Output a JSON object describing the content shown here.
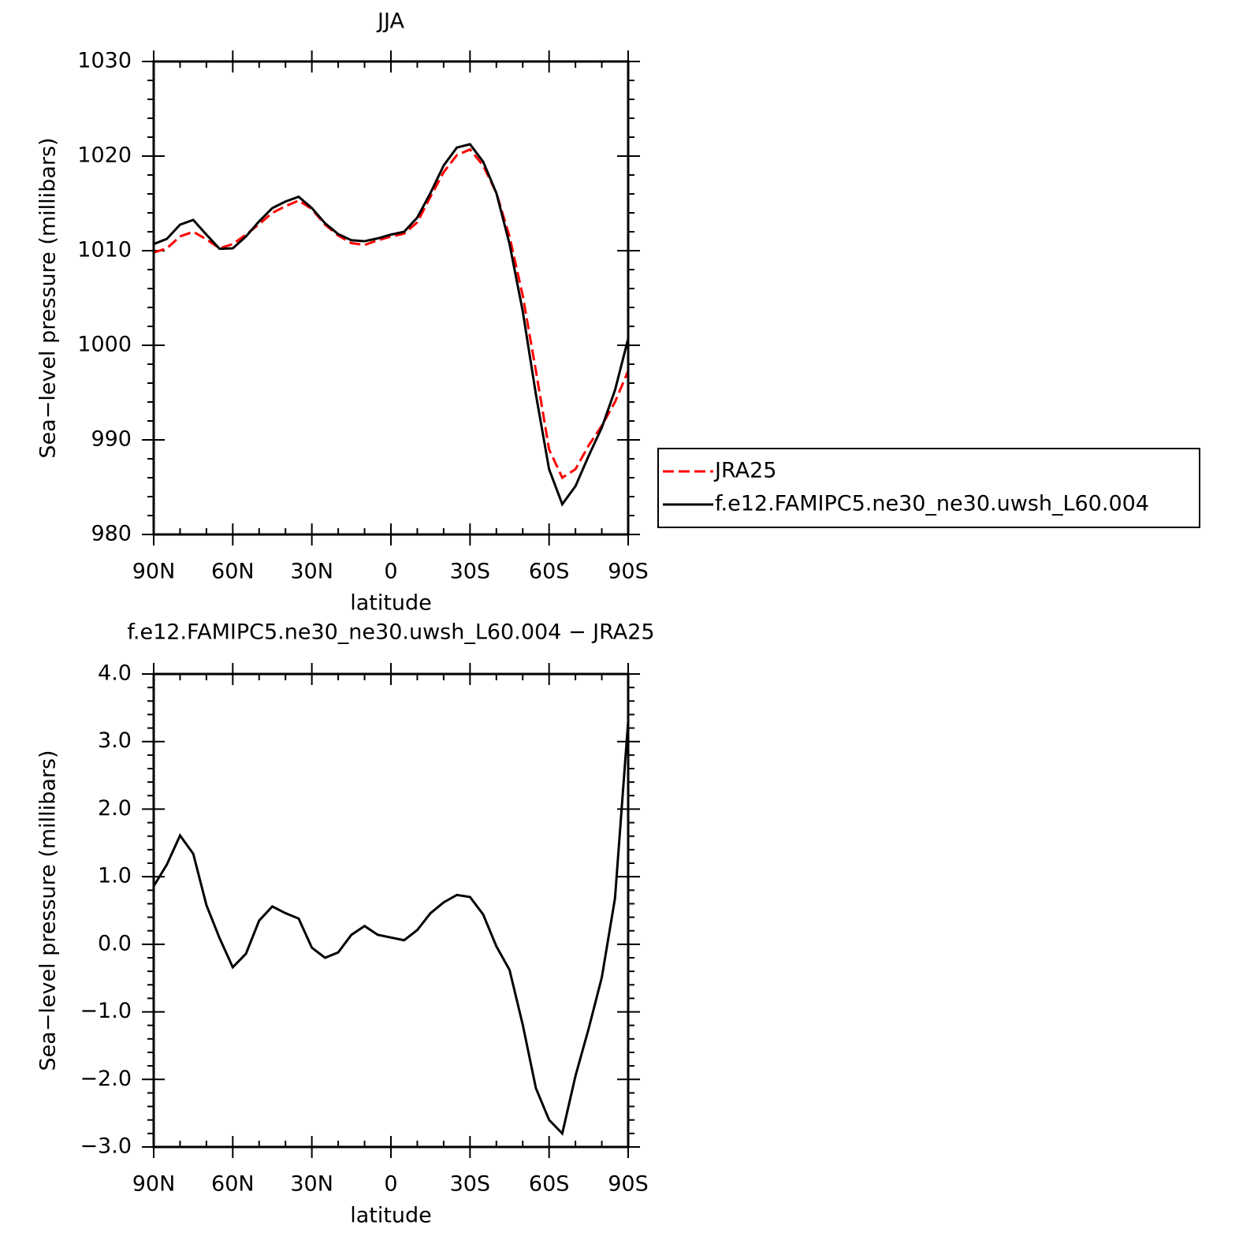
{
  "chart_data": [
    {
      "type": "line",
      "title": "JJA",
      "xlabel": "latitude",
      "ylabel": "Sea−level pressure (millibars)",
      "x": [
        90,
        85,
        80,
        75,
        70,
        65,
        60,
        55,
        50,
        45,
        40,
        35,
        30,
        25,
        20,
        15,
        10,
        5,
        0,
        -5,
        -10,
        -15,
        -20,
        -25,
        -30,
        -35,
        -40,
        -45,
        -50,
        -55,
        -60,
        -65,
        -70,
        -75,
        -80,
        -85,
        -90
      ],
      "series": [
        {
          "name": "JRA25",
          "color": "#ff0000",
          "dash": true,
          "values": [
            1009.8,
            1010.25,
            1011.5,
            1012,
            1011.2,
            1010.25,
            1010.7,
            1011.7,
            1012.8,
            1014,
            1014.7,
            1015.3,
            1014.4,
            1012.75,
            1011.6,
            1010.8,
            1010.6,
            1011.1,
            1011.5,
            1011.8,
            1013,
            1015.7,
            1018.3,
            1020.1,
            1020.7,
            1019,
            1016.1,
            1011.5,
            1005.25,
            997.3,
            989,
            986,
            986.9,
            989.4,
            991.5,
            994,
            997.3
          ]
        },
        {
          "name": "f.e12.FAMIPC5.ne30_ne30.uwsh_L60.004",
          "color": "#000000",
          "dash": false,
          "values": [
            1010.7,
            1011.25,
            1012.75,
            1013.25,
            1011.7,
            1010.2,
            1010.25,
            1011.5,
            1013.1,
            1014.5,
            1015.2,
            1015.7,
            1014.5,
            1012.9,
            1011.75,
            1011.1,
            1011,
            1011.3,
            1011.7,
            1012,
            1013.5,
            1016.1,
            1019,
            1020.9,
            1021.25,
            1019.4,
            1016.1,
            1010.7,
            1003.6,
            994.8,
            986.9,
            983.2,
            985.1,
            988.3,
            991.3,
            995.25,
            1000.7
          ]
        }
      ],
      "xlim": [
        90,
        -90
      ],
      "xticks": [
        {
          "value": 90,
          "label": "90N"
        },
        {
          "value": 60,
          "label": "60N"
        },
        {
          "value": 30,
          "label": "30N"
        },
        0,
        {
          "value": -30,
          "label": "30S"
        },
        {
          "value": -60,
          "label": "60S"
        },
        {
          "value": -90,
          "label": "90S"
        }
      ],
      "xminor": [
        80,
        70,
        50,
        40,
        20,
        10,
        -10,
        -20,
        -40,
        -50,
        -70,
        -80
      ],
      "ylim": [
        980,
        1030
      ],
      "yticks": [
        980,
        990,
        1000,
        1010,
        1020,
        1030
      ],
      "yminor": [
        982,
        984,
        986,
        988,
        992,
        994,
        996,
        998,
        1002,
        1004,
        1006,
        1008,
        1012,
        1014,
        1016,
        1018,
        1022,
        1024,
        1026,
        1028
      ],
      "legend": "right"
    },
    {
      "type": "line",
      "title": "f.e12.FAMIPC5.ne30_ne30.uwsh_L60.004 − JRA25",
      "xlabel": "latitude",
      "ylabel": "Sea−level pressure (millibars)",
      "x": [
        90,
        85,
        80,
        75,
        70,
        65,
        60,
        55,
        50,
        45,
        40,
        35,
        30,
        25,
        20,
        15,
        10,
        5,
        0,
        -5,
        -10,
        -15,
        -20,
        -25,
        -30,
        -35,
        -40,
        -45,
        -50,
        -55,
        -60,
        -65,
        -70,
        -75,
        -80,
        -85,
        -90
      ],
      "color": "#000000",
      "values": [
        0.86,
        1.18,
        1.61,
        1.34,
        0.58,
        0.09,
        -0.34,
        -0.14,
        0.35,
        0.56,
        0.46,
        0.38,
        -0.05,
        -0.2,
        -0.12,
        0.14,
        0.27,
        0.14,
        0.1,
        0.06,
        0.21,
        0.46,
        0.62,
        0.73,
        0.7,
        0.44,
        -0.03,
        -0.38,
        -1.19,
        -2.13,
        -2.6,
        -2.8,
        -1.95,
        -1.25,
        -0.49,
        0.68,
        3.3
      ],
      "xlim": [
        90,
        -90
      ],
      "xticks": [
        {
          "value": 90,
          "label": "90N"
        },
        {
          "value": 60,
          "label": "60N"
        },
        {
          "value": 30,
          "label": "30N"
        },
        0,
        {
          "value": -30,
          "label": "30S"
        },
        {
          "value": -60,
          "label": "60S"
        },
        {
          "value": -90,
          "label": "90S"
        }
      ],
      "xminor": [
        80,
        70,
        50,
        40,
        20,
        10,
        -10,
        -20,
        -40,
        -50,
        -70,
        -80
      ],
      "ylim": [
        -3,
        4
      ],
      "yticks": [
        {
          "value": -3,
          "label": "−3.0"
        },
        {
          "value": -2,
          "label": "−2.0"
        },
        {
          "value": -1,
          "label": "−1.0"
        },
        {
          "value": 0,
          "label": "0.0"
        },
        {
          "value": 1,
          "label": "1.0"
        },
        {
          "value": 2,
          "label": "2.0"
        },
        {
          "value": 3,
          "label": "3.0"
        },
        {
          "value": 4,
          "label": "4.0"
        }
      ],
      "yminor": [
        -2.8,
        -2.6,
        -2.4,
        -2.2,
        -1.8,
        -1.6,
        -1.4,
        -1.2,
        -0.8,
        -0.6,
        -0.4,
        -0.2,
        0.2,
        0.4,
        0.6,
        0.8,
        1.2,
        1.4,
        1.6,
        1.8,
        2.2,
        2.4,
        2.6,
        2.8,
        3.2,
        3.4,
        3.6,
        3.8
      ]
    }
  ]
}
